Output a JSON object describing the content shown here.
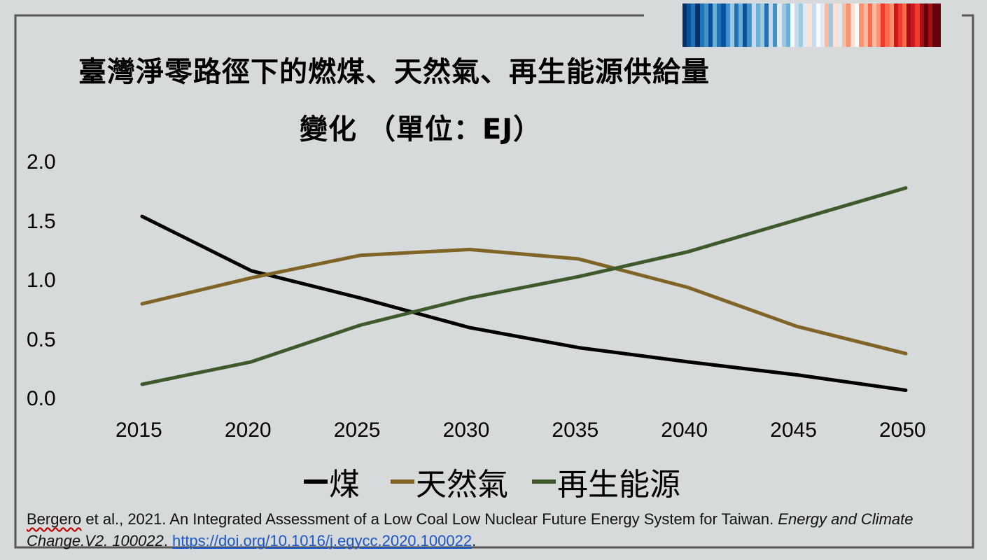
{
  "page": {
    "title_line1": "臺灣淨零路徑下的燃煤、天然氣、再生能源供給量",
    "title_line2": "變化 （單位：EJ）"
  },
  "citation": {
    "author_prefix": "Bergero",
    "text1": " et al., 2021. An Integrated Assessment of a Low Coal Low Nuclear Future Energy System for Taiwan. ",
    "journal": "Energy and Climate Change.V2. 100022",
    "sep": ". ",
    "link": "https://doi.org/10.1016/j.egycc.2020.100022",
    "end": "."
  },
  "colors": {
    "background": "#d6dadb",
    "coal": "#000000",
    "gas": "#7f6426",
    "renewable": "#3e5a2c"
  },
  "chart_data": {
    "type": "line",
    "title": "臺灣淨零路徑下的燃煤、天然氣、再生能源供給量變化 （單位：EJ）",
    "x": [
      2015,
      2020,
      2025,
      2030,
      2035,
      2040,
      2045,
      2050
    ],
    "x_tick_labels": [
      "2015",
      "2020",
      "2025",
      "2030",
      "2035",
      "2040",
      "2045",
      "2050"
    ],
    "ylim": [
      0,
      2.0
    ],
    "y_ticks": [
      "0.0",
      "0.5",
      "1.0",
      "1.5",
      "2.0"
    ],
    "grid": false,
    "legend_position": "bottom",
    "series": [
      {
        "name": "煤",
        "color": "#000000",
        "values": [
          1.55,
          1.09,
          0.86,
          0.61,
          0.44,
          0.32,
          0.21,
          0.08
        ]
      },
      {
        "name": "天然氣",
        "color": "#7f6426",
        "values": [
          0.81,
          1.03,
          1.22,
          1.27,
          1.19,
          0.95,
          0.62,
          0.39
        ]
      },
      {
        "name": "再生能源",
        "color": "#3e5a2c",
        "values": [
          0.13,
          0.32,
          0.63,
          0.86,
          1.04,
          1.25,
          1.52,
          1.79
        ]
      }
    ]
  },
  "warming_stripes": [
    "#08306b",
    "#08519c",
    "#2171b5",
    "#08306b",
    "#2171b5",
    "#4292c6",
    "#08519c",
    "#6baed6",
    "#2171b5",
    "#08519c",
    "#4292c6",
    "#9ecae1",
    "#2171b5",
    "#6baed6",
    "#08519c",
    "#4292c6",
    "#c6dbef",
    "#6baed6",
    "#9ecae1",
    "#2171b5",
    "#c6dbef",
    "#4292c6",
    "#deebf7",
    "#9ecae1",
    "#6baed6",
    "#f7fbff",
    "#c6dbef",
    "#9ecae1",
    "#deebf7",
    "#fee0d2",
    "#c6dbef",
    "#f7fbff",
    "#deebf7",
    "#fcbba1",
    "#9ecae1",
    "#fee0d2",
    "#deebf7",
    "#fcbba1",
    "#fc9272",
    "#fee0d2",
    "#f7fbff",
    "#fc9272",
    "#fcbba1",
    "#fb6a4a",
    "#fcbba1",
    "#fc9272",
    "#ef3b2c",
    "#fb6a4a",
    "#fc9272",
    "#cb181d",
    "#ef3b2c",
    "#fb6a4a",
    "#a50f15",
    "#cb181d",
    "#ef3b2c",
    "#a50f15",
    "#67000d",
    "#a50f15",
    "#67000d",
    "#67000d"
  ]
}
